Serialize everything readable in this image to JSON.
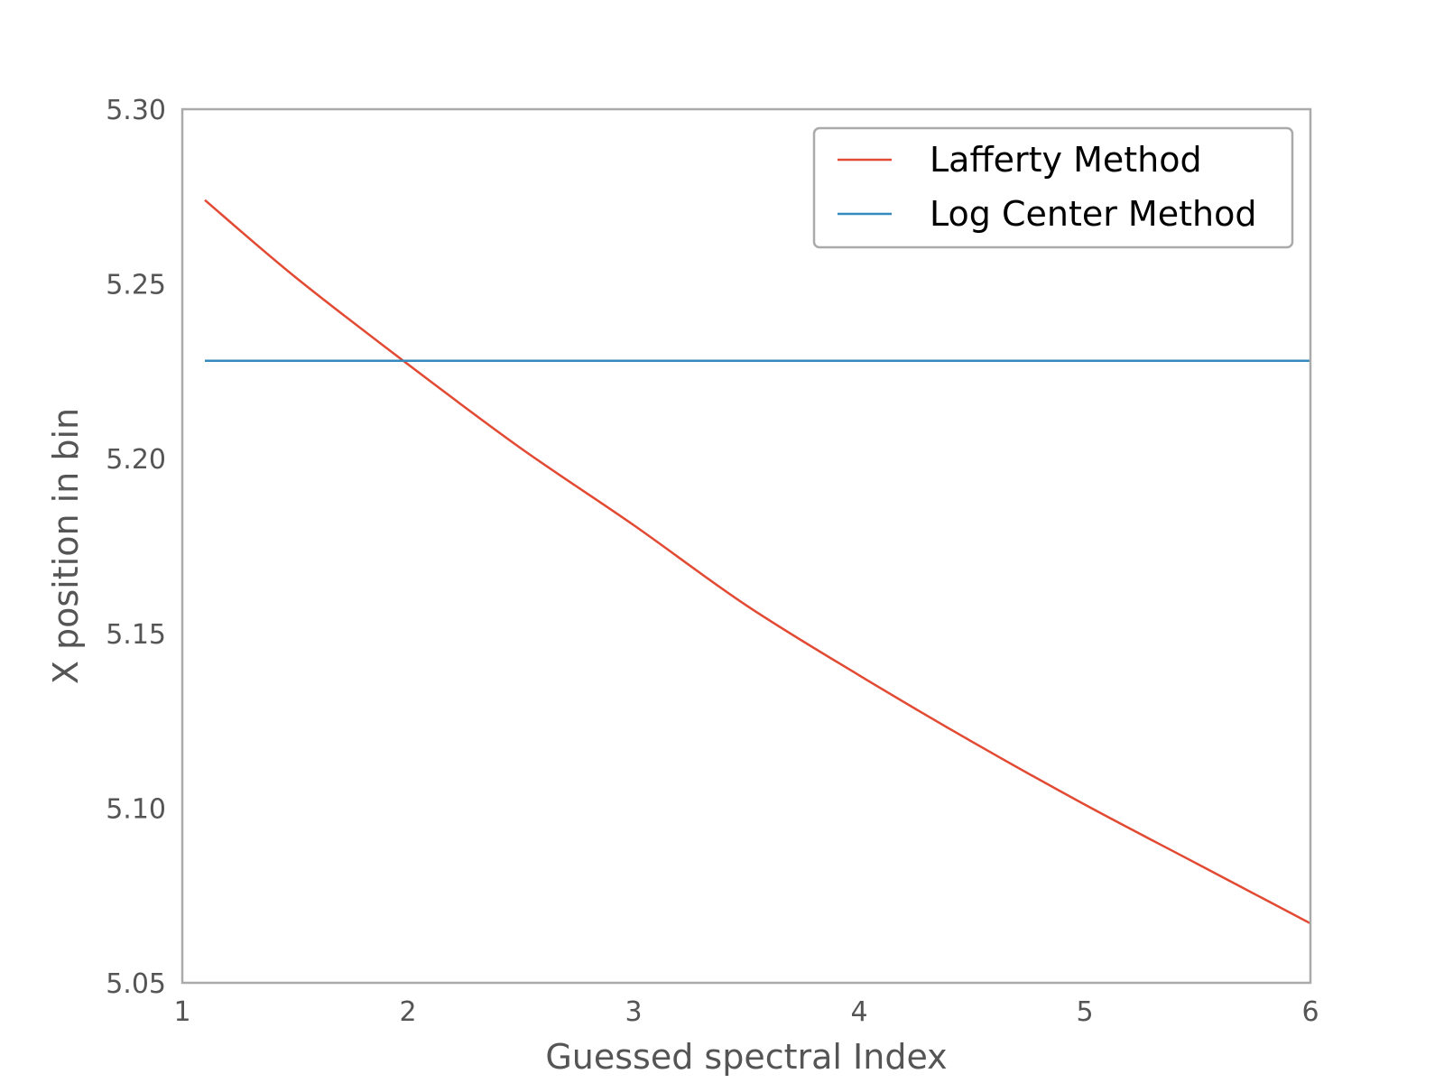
{
  "chart_data": {
    "type": "line",
    "title": "",
    "xlabel": "Guessed spectral Index",
    "ylabel": "X position in bin",
    "xlim": [
      1,
      6
    ],
    "ylim": [
      5.05,
      5.3
    ],
    "xticks": [
      1,
      2,
      3,
      4,
      5,
      6
    ],
    "xtick_labels": [
      "1",
      "2",
      "3",
      "4",
      "5",
      "6"
    ],
    "yticks": [
      5.05,
      5.1,
      5.15,
      5.2,
      5.25,
      5.3
    ],
    "ytick_labels": [
      "5.05",
      "5.10",
      "5.15",
      "5.20",
      "5.25",
      "5.30"
    ],
    "grid": false,
    "legend_position": "top-right",
    "series": [
      {
        "name": "Lafferty Method",
        "color": "#e24a33",
        "x": [
          1.1,
          1.5,
          2.0,
          2.5,
          3.0,
          3.5,
          4.0,
          4.5,
          5.0,
          5.5,
          6.0
        ],
        "y": [
          5.274,
          5.252,
          5.227,
          5.203,
          5.181,
          5.158,
          5.138,
          5.119,
          5.101,
          5.084,
          5.067
        ]
      },
      {
        "name": "Log Center Method",
        "color": "#348abd",
        "x": [
          1.1,
          6.0
        ],
        "y": [
          5.228,
          5.228
        ]
      }
    ]
  }
}
